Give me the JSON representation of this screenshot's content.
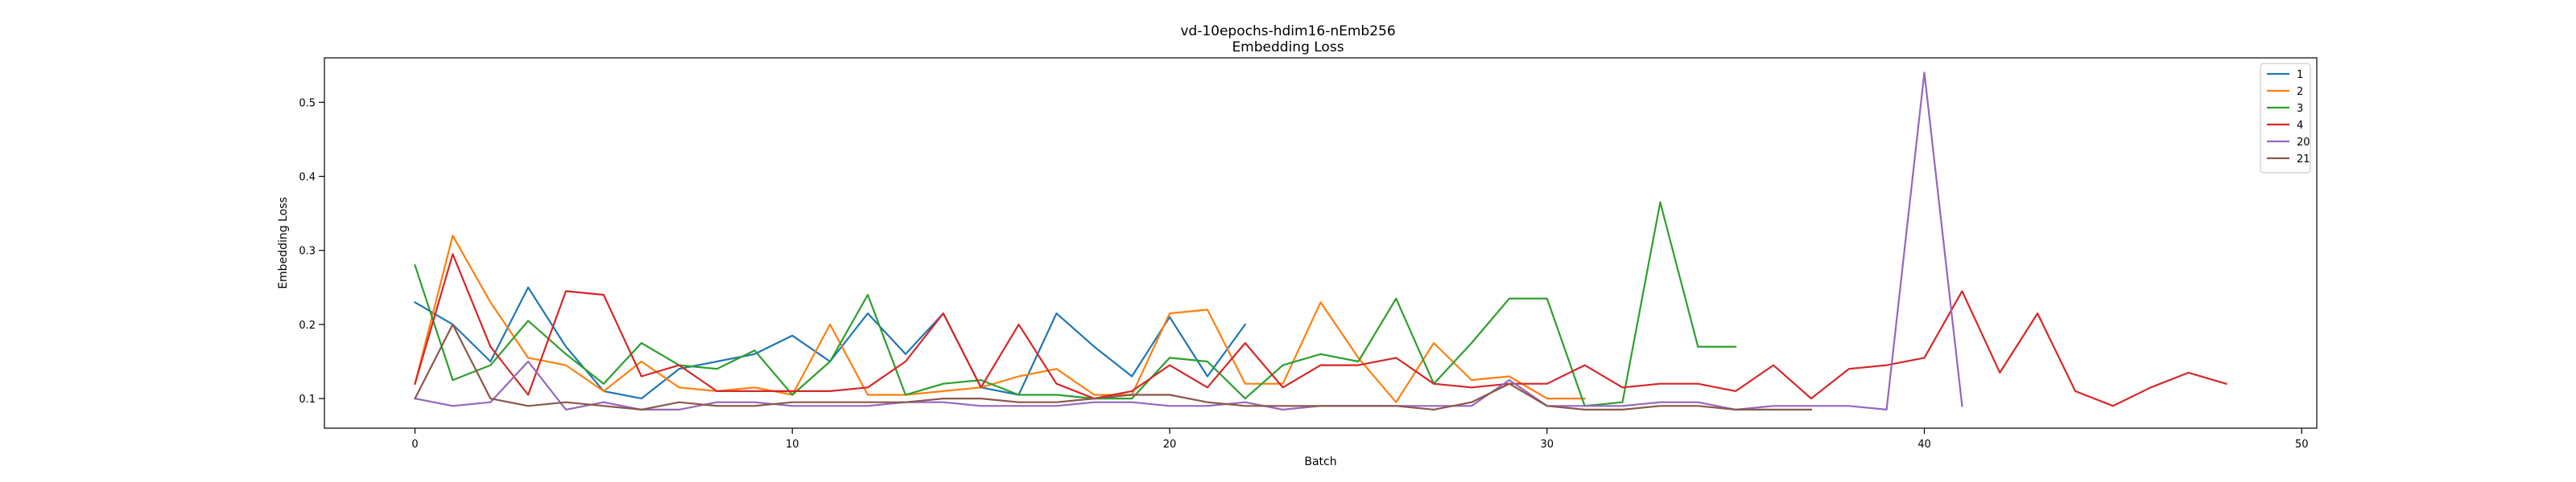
{
  "chart_data": {
    "type": "line",
    "title": "vd-10epochs-hdim16-nEmb256",
    "subtitle": "Embedding Loss",
    "xlabel": "Batch",
    "ylabel": "Embedding Loss",
    "xlim": [
      -2.4,
      50.4
    ],
    "ylim": [
      0.06,
      0.56
    ],
    "xticks": [
      0,
      10,
      20,
      30,
      40,
      50
    ],
    "xtick_labels": [
      "0",
      "10",
      "20",
      "30",
      "40",
      "50"
    ],
    "yticks": [
      0.1,
      0.2,
      0.3,
      0.4,
      0.5
    ],
    "ytick_labels": [
      "0.1",
      "0.2",
      "0.3",
      "0.4",
      "0.5"
    ],
    "grid": false,
    "legend_position": "top-right",
    "series": [
      {
        "name": "1",
        "color": "#1f77b4",
        "x": [
          0,
          1,
          2,
          3,
          4,
          5,
          6,
          7,
          8,
          9,
          10,
          11,
          12,
          13,
          14,
          15,
          16,
          17,
          18,
          19,
          20,
          21,
          22
        ],
        "y": [
          0.23,
          0.2,
          0.15,
          0.25,
          0.17,
          0.11,
          0.1,
          0.14,
          0.15,
          0.16,
          0.185,
          0.15,
          0.215,
          0.16,
          0.215,
          0.115,
          0.105,
          0.215,
          0.17,
          0.13,
          0.21,
          0.13,
          0.2
        ]
      },
      {
        "name": "2",
        "color": "#ff7f0e",
        "x": [
          0,
          1,
          2,
          3,
          4,
          5,
          6,
          7,
          8,
          9,
          10,
          11,
          12,
          13,
          14,
          15,
          16,
          17,
          18,
          19,
          20,
          21,
          22,
          23,
          24,
          25,
          26,
          27,
          28,
          29,
          30,
          31
        ],
        "y": [
          0.12,
          0.32,
          0.23,
          0.155,
          0.145,
          0.11,
          0.15,
          0.115,
          0.11,
          0.115,
          0.105,
          0.2,
          0.105,
          0.105,
          0.11,
          0.115,
          0.13,
          0.14,
          0.105,
          0.105,
          0.215,
          0.22,
          0.12,
          0.12,
          0.23,
          0.155,
          0.095,
          0.175,
          0.125,
          0.13,
          0.1,
          0.1
        ]
      },
      {
        "name": "3",
        "color": "#2ca02c",
        "x": [
          0,
          1,
          2,
          3,
          4,
          5,
          6,
          7,
          8,
          9,
          10,
          11,
          12,
          13,
          14,
          15,
          16,
          17,
          18,
          19,
          20,
          21,
          22,
          23,
          24,
          25,
          26,
          27,
          28,
          29,
          30,
          31,
          32,
          33,
          34,
          35
        ],
        "y": [
          0.28,
          0.125,
          0.145,
          0.205,
          0.16,
          0.12,
          0.175,
          0.145,
          0.14,
          0.165,
          0.105,
          0.15,
          0.24,
          0.105,
          0.12,
          0.125,
          0.105,
          0.105,
          0.1,
          0.1,
          0.155,
          0.15,
          0.1,
          0.145,
          0.16,
          0.15,
          0.235,
          0.12,
          0.175,
          0.235,
          0.235,
          0.09,
          0.095,
          0.365,
          0.17,
          0.17
        ]
      },
      {
        "name": "4",
        "color": "#d62728",
        "x": [
          0,
          1,
          2,
          3,
          4,
          5,
          6,
          7,
          8,
          9,
          10,
          11,
          12,
          13,
          14,
          15,
          16,
          17,
          18,
          19,
          20,
          21,
          22,
          23,
          24,
          25,
          26,
          27,
          28,
          29,
          30,
          31,
          32,
          33,
          34,
          35,
          36,
          37,
          38,
          39,
          40,
          41,
          42,
          43,
          44,
          45,
          46,
          47,
          48
        ],
        "y": [
          0.12,
          0.295,
          0.17,
          0.105,
          0.245,
          0.24,
          0.13,
          0.145,
          0.11,
          0.11,
          0.11,
          0.11,
          0.115,
          0.15,
          0.215,
          0.115,
          0.2,
          0.12,
          0.1,
          0.11,
          0.145,
          0.115,
          0.175,
          0.115,
          0.145,
          0.145,
          0.155,
          0.12,
          0.115,
          0.12,
          0.12,
          0.145,
          0.115,
          0.12,
          0.12,
          0.11,
          0.145,
          0.1,
          0.14,
          0.145,
          0.155,
          0.245,
          0.135,
          0.215,
          0.11,
          0.09,
          0.115,
          0.135,
          0.12
        ]
      },
      {
        "name": "20",
        "color": "#9467bd",
        "x": [
          0,
          1,
          2,
          3,
          4,
          5,
          6,
          7,
          8,
          9,
          10,
          11,
          12,
          13,
          14,
          15,
          16,
          17,
          18,
          19,
          20,
          21,
          22,
          23,
          24,
          25,
          26,
          27,
          28,
          29,
          30,
          31,
          32,
          33,
          34,
          35,
          36,
          37,
          38,
          39,
          40,
          41
        ],
        "y": [
          0.1,
          0.09,
          0.095,
          0.15,
          0.085,
          0.095,
          0.085,
          0.085,
          0.095,
          0.095,
          0.09,
          0.09,
          0.09,
          0.095,
          0.095,
          0.09,
          0.09,
          0.09,
          0.095,
          0.095,
          0.09,
          0.09,
          0.095,
          0.085,
          0.09,
          0.09,
          0.09,
          0.09,
          0.09,
          0.125,
          0.09,
          0.09,
          0.09,
          0.095,
          0.095,
          0.085,
          0.09,
          0.09,
          0.09,
          0.085,
          0.54,
          0.09
        ]
      },
      {
        "name": "21",
        "color": "#8c564b",
        "x": [
          0,
          1,
          2,
          3,
          4,
          5,
          6,
          7,
          8,
          9,
          10,
          11,
          12,
          13,
          14,
          15,
          16,
          17,
          18,
          19,
          20,
          21,
          22,
          23,
          24,
          25,
          26,
          27,
          28,
          29,
          30,
          31,
          32,
          33,
          34,
          35,
          36,
          37
        ],
        "y": [
          0.1,
          0.2,
          0.1,
          0.09,
          0.095,
          0.09,
          0.085,
          0.095,
          0.09,
          0.09,
          0.095,
          0.095,
          0.095,
          0.095,
          0.1,
          0.1,
          0.095,
          0.095,
          0.1,
          0.105,
          0.105,
          0.095,
          0.09,
          0.09,
          0.09,
          0.09,
          0.09,
          0.085,
          0.095,
          0.12,
          0.09,
          0.085,
          0.085,
          0.09,
          0.09,
          0.085,
          0.085,
          0.085
        ]
      }
    ]
  }
}
